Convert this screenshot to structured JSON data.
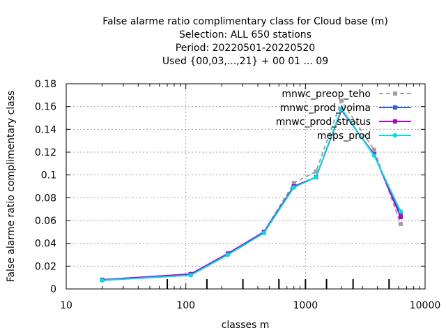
{
  "chart_data": {
    "type": "line",
    "title": [
      "False alarme ratio complimentary class  for Cloud base (m)",
      "Selection: ALL    650 stations",
      "Period: 20220501-20220520",
      "Used {00,03,...,21} + 00 01 ... 09"
    ],
    "xlabel": "classes m",
    "ylabel": "False alarme ratio complimentary class",
    "xscale": "log",
    "xlim": [
      10,
      10000
    ],
    "ylim": [
      0,
      0.18
    ],
    "xticks": [
      10,
      100,
      1000,
      10000
    ],
    "xtick_labels": [
      "10",
      "100",
      "1000",
      "10000"
    ],
    "yticks": [
      0,
      0.02,
      0.04,
      0.06,
      0.08,
      0.1,
      0.12,
      0.14,
      0.16,
      0.18
    ],
    "ytick_labels": [
      "0",
      "0.02",
      "0.04",
      "0.06",
      "0.08",
      "0.1",
      "0.12",
      "0.14",
      "0.16",
      "0.18"
    ],
    "class_bounds": [
      70,
      150,
      300,
      600,
      1000,
      1500,
      2500,
      5000
    ],
    "grid": true,
    "legend_position": "top-right",
    "x": [
      20,
      110,
      225,
      450,
      800,
      1225,
      2000,
      3750,
      6250
    ],
    "series": [
      {
        "name": "mnwc_preop_teho",
        "color": "#a0a0a0",
        "dash": "6,4",
        "values": [
          0.008,
          0.013,
          0.031,
          0.05,
          0.093,
          0.103,
          0.165,
          0.122,
          0.057
        ]
      },
      {
        "name": "mnwc_prod_voima",
        "color": "#3060d0",
        "dash": "",
        "values": [
          0.008,
          0.013,
          0.031,
          0.05,
          0.09,
          0.098,
          0.157,
          0.118,
          0.065
        ]
      },
      {
        "name": "mnwc_prod_stratus",
        "color": "#b000d0",
        "dash": "",
        "values": [
          0.008,
          0.013,
          0.031,
          0.05,
          0.09,
          0.098,
          0.157,
          0.118,
          0.063
        ]
      },
      {
        "name": "meps_prod",
        "color": "#00e0e0",
        "dash": "",
        "values": [
          0.0075,
          0.012,
          0.03,
          0.049,
          0.089,
          0.098,
          0.158,
          0.117,
          0.068
        ]
      }
    ]
  }
}
